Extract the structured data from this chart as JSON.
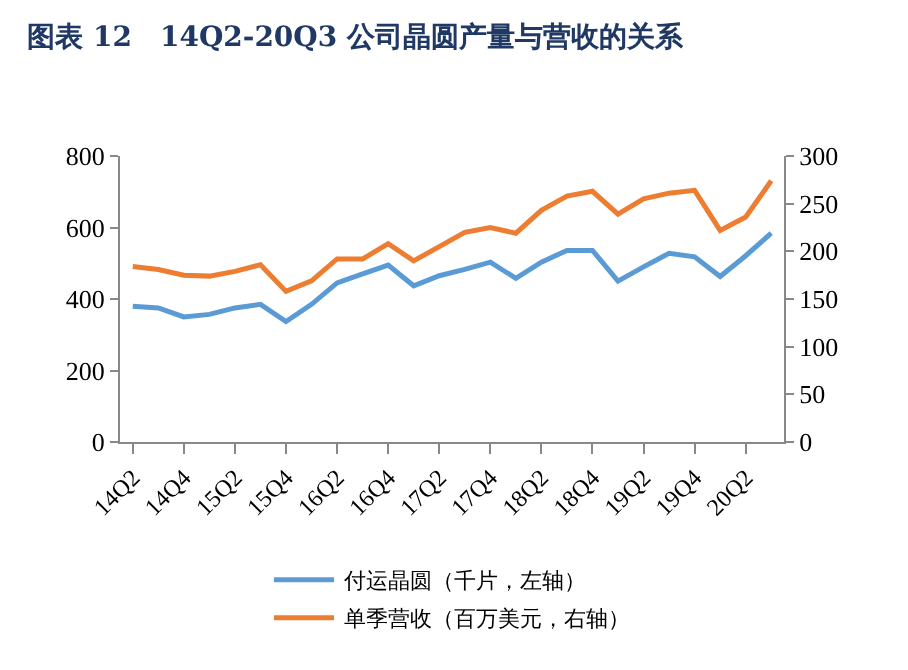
{
  "chart_data": {
    "type": "line",
    "title": "图表 12　14Q2-20Q3 公司晶圆产量与营收的关系",
    "categories": [
      "14Q2",
      null,
      "14Q4",
      null,
      "15Q2",
      null,
      "15Q4",
      null,
      "16Q2",
      null,
      "16Q4",
      null,
      "17Q2",
      null,
      "17Q4",
      null,
      "18Q2",
      null,
      "18Q4",
      null,
      "19Q2",
      null,
      "19Q4",
      null,
      "20Q2",
      null
    ],
    "series": [
      {
        "name": "付运晶圆（千片，左轴）",
        "color": "#5b9bd5",
        "values": [
          380,
          375,
          350,
          357,
          375,
          385,
          337,
          385,
          445,
          470,
          495,
          437,
          465,
          483,
          503,
          458,
          503,
          536,
          536,
          450,
          490,
          528,
          518,
          463,
          521,
          584
        ]
      },
      {
        "name": "单季营收（百万美元，右轴）",
        "color": "#ed7d31",
        "axis": "y2",
        "values": [
          184,
          181,
          175,
          174,
          179,
          186,
          158,
          169,
          192,
          192,
          208,
          190,
          205,
          220,
          225,
          219,
          243,
          258,
          263,
          239,
          255,
          261,
          264,
          222,
          236,
          274
        ]
      }
    ],
    "ylim": [
      0,
      800
    ],
    "yticks": [
      0,
      200,
      400,
      600,
      800
    ],
    "y2lim": [
      0,
      300
    ],
    "y2ticks": [
      0,
      50,
      100,
      150,
      200,
      250,
      300
    ],
    "legend": "bottom",
    "marker": "none",
    "line_style": "solid"
  }
}
